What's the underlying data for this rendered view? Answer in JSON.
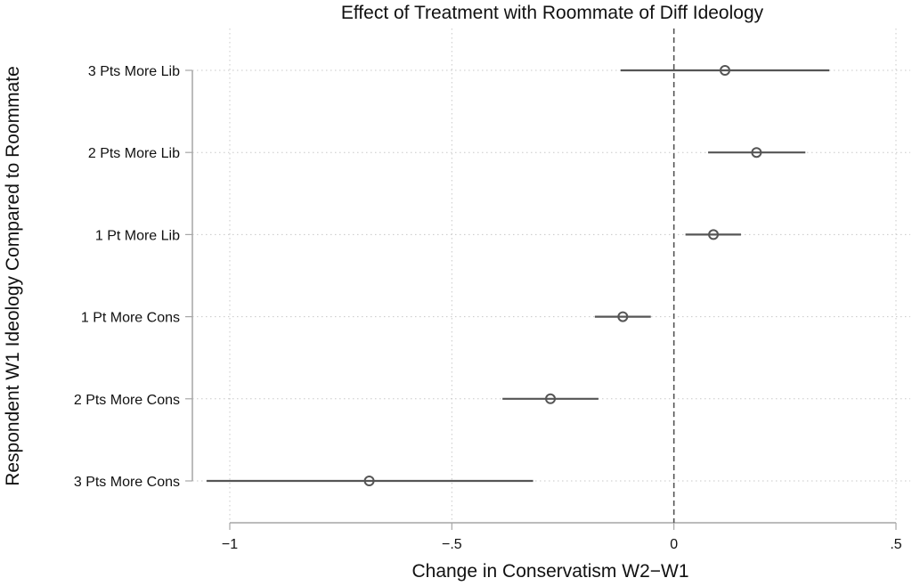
{
  "chart_data": {
    "type": "scatter",
    "title": "Effect of Treatment with Roommate of Diff Ideology",
    "xlabel": "Change in Conservatism W2−W1",
    "ylabel": "Respondent W1 Ideology Compared to Roommate",
    "xlim": [
      -1.05,
      0.52
    ],
    "xticks": [
      -1,
      -0.5,
      0,
      0.5
    ],
    "xtick_labels": [
      "−1",
      "−.5",
      "0",
      ".5"
    ],
    "reference_line_x": 0,
    "grid": true,
    "categories": [
      "3 Pts More Lib",
      "2 Pts More Lib",
      "1 Pt More Lib",
      "1 Pt More Cons",
      "2 Pts More Cons",
      "3 Pts More Cons"
    ],
    "estimates": [
      0.115,
      0.186,
      0.089,
      -0.115,
      -0.278,
      -0.686
    ],
    "ci_low": [
      -0.12,
      0.077,
      0.026,
      -0.178,
      -0.386,
      -1.052
    ],
    "ci_high": [
      0.35,
      0.296,
      0.151,
      -0.052,
      -0.17,
      -0.317
    ]
  }
}
